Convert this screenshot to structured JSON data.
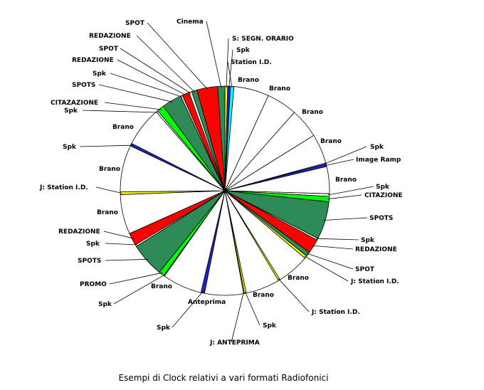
{
  "chart_data": {
    "type": "pie",
    "caption": "Esempi di Clock relativi a vari formati Radiofonici",
    "colors": {
      "white": "#ffffff",
      "dark_green": "#2e8b57",
      "red": "#ff0000",
      "light_green": "#00ff00",
      "blue": "#2222cc",
      "yellow": "#ffff00",
      "cyan": "#00ffff"
    },
    "slices": [
      {
        "label": "S: SEGN. ORARIO",
        "value": 0.3,
        "color": "yellow"
      },
      {
        "label": "Spk",
        "value": 0.3,
        "color": "blue"
      },
      {
        "label": "Station I.D.",
        "value": 0.4,
        "color": "cyan"
      },
      {
        "label": "Brano",
        "value": 3.9,
        "color": "white"
      },
      {
        "label": "Brano",
        "value": 3.4,
        "color": "white"
      },
      {
        "label": "Brano",
        "value": 3.3,
        "color": "white"
      },
      {
        "label": "Brano",
        "value": 3.3,
        "color": "white"
      },
      {
        "label": "Spk",
        "value": 0.1,
        "color": "white"
      },
      {
        "label": "Image Ramp",
        "value": 0.3,
        "color": "blue"
      },
      {
        "label": "Brano",
        "value": 3.0,
        "color": "white"
      },
      {
        "label": "Spk",
        "value": 0.3,
        "color": "white"
      },
      {
        "label": "CITAZIONE",
        "value": 0.6,
        "color": "light_green"
      },
      {
        "label": "SPOTS",
        "value": 4.2,
        "color": "dark_green"
      },
      {
        "label": "Spk",
        "value": 0.2,
        "color": "white"
      },
      {
        "label": "REDAZIONE",
        "value": 1.6,
        "color": "red"
      },
      {
        "label": "SPOT",
        "value": 0.5,
        "color": "dark_green"
      },
      {
        "label": "J: Station I.D.",
        "value": 0.3,
        "color": "yellow"
      },
      {
        "label": "Brano",
        "value": 3.6,
        "color": "white"
      },
      {
        "label": "J: Station I.D.",
        "value": 0.2,
        "color": "yellow"
      },
      {
        "label": "Brano",
        "value": 3.8,
        "color": "white"
      },
      {
        "label": "Spk",
        "value": 0.2,
        "color": "yellow"
      },
      {
        "label": "J: ANTEPRIMA",
        "value": 0.1,
        "color": "yellow"
      },
      {
        "label": "Anteprima",
        "value": 4.3,
        "color": "white"
      },
      {
        "label": "Spk",
        "value": 0.4,
        "color": "blue"
      },
      {
        "label": "Brano",
        "value": 4.4,
        "color": "white"
      },
      {
        "label": "Spk",
        "value": 0.1,
        "color": "white"
      },
      {
        "label": "PROMO",
        "value": 0.6,
        "color": "light_green"
      },
      {
        "label": "SPOTS",
        "value": 3.8,
        "color": "dark_green"
      },
      {
        "label": "Spk",
        "value": 0.2,
        "color": "white"
      },
      {
        "label": "REDAZIONE",
        "value": 1.4,
        "color": "red"
      },
      {
        "label": "Brano",
        "value": 4.4,
        "color": "white"
      },
      {
        "label": "J: Station I.D.",
        "value": 0.3,
        "color": "yellow"
      },
      {
        "label": "Brano",
        "value": 5.2,
        "color": "white"
      },
      {
        "label": "Spk",
        "value": 0.3,
        "color": "blue"
      },
      {
        "label": "Brano",
        "value": 4.4,
        "color": "white"
      },
      {
        "label": "Spk",
        "value": 0.2,
        "color": "white"
      },
      {
        "label": "CITAZAZIONE",
        "value": 0.8,
        "color": "light_green"
      },
      {
        "label": "SPOTS",
        "value": 2.2,
        "color": "dark_green"
      },
      {
        "label": "Spk",
        "value": 0.2,
        "color": "white"
      },
      {
        "label": "REDAZIONE",
        "value": 0.8,
        "color": "red"
      },
      {
        "label": "SPOT",
        "value": 0.3,
        "color": "white"
      },
      {
        "label": "REDAZIONE",
        "value": 0.6,
        "color": "dark_green"
      },
      {
        "label": "SPOT",
        "value": 2.3,
        "color": "red"
      },
      {
        "label": "Cinema",
        "value": 0.8,
        "color": "dark_green"
      }
    ]
  }
}
